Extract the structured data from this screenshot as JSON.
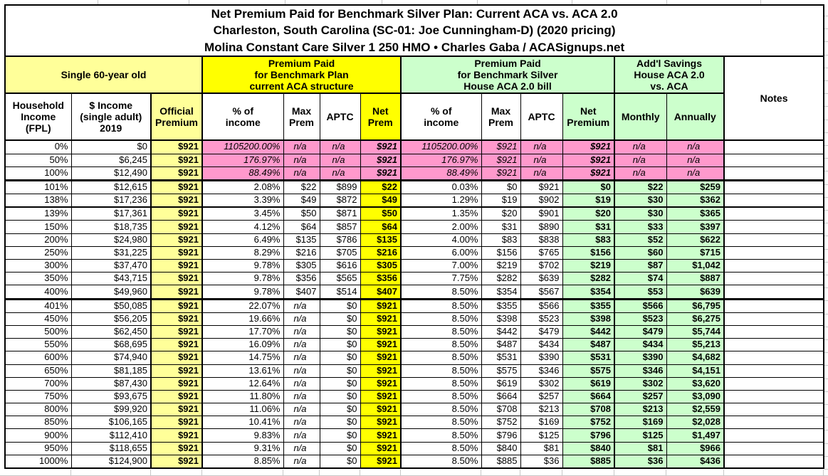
{
  "title": {
    "line1": "Net Premium Paid for Benchmark Silver Plan: Current ACA vs. ACA 2.0",
    "line2": "Charleston, South Carolina (SC-01: Joe Cunningham-D) (2020 pricing)",
    "line3": "Molina Constant Care Silver 1 250 HMO • Charles Gaba / ACASignups.net"
  },
  "colors": {
    "light_yellow": "#FFFF99",
    "bright_yellow": "#FFFF00",
    "light_green": "#CCFFCC",
    "pink": "#FF99CC"
  },
  "table": {
    "groups": {
      "demographic": "Single 60-year old",
      "current_aca": "Premium Paid\nfor Benchmark Plan\ncurrent ACA structure",
      "aca20": "Premium Paid\nfor Benchmark Silver\nHouse ACA 2.0 bill",
      "savings": "Add'l Savings\nHouse ACA 2.0\nvs. ACA",
      "notes": "Notes"
    },
    "columns": [
      "Household\nIncome\n(FPL)",
      "$ Income\n(single adult)\n2019",
      "Official\nPremium",
      "% of\nincome",
      "Max\nPrem",
      "APTC",
      "Net\nPrem",
      "% of\nincome",
      "Max\nPrem",
      "APTC",
      "Net\nPremium",
      "Monthly",
      "Annually"
    ],
    "rows": [
      {
        "cells": [
          "0%",
          "$0",
          "$921",
          "1105200.00%",
          "n/a",
          "n/a",
          "$921",
          "1105200.00%",
          "$921",
          "n/a",
          "$921",
          "n/a",
          "n/a",
          ""
        ],
        "pink": true
      },
      {
        "cells": [
          "50%",
          "$6,245",
          "$921",
          "176.97%",
          "n/a",
          "n/a",
          "$921",
          "176.97%",
          "$921",
          "n/a",
          "$921",
          "n/a",
          "n/a",
          ""
        ],
        "pink": true
      },
      {
        "cells": [
          "100%",
          "$12,490",
          "$921",
          "88.49%",
          "n/a",
          "n/a",
          "$921",
          "88.49%",
          "$921",
          "n/a",
          "$921",
          "n/a",
          "n/a",
          ""
        ],
        "pink": true,
        "divider": "thick3"
      },
      {
        "cells": [
          "101%",
          "$12,615",
          "$921",
          "2.08%",
          "$22",
          "$899",
          "$22",
          "0.03%",
          "$0",
          "$921",
          "$0",
          "$22",
          "$259",
          ""
        ]
      },
      {
        "cells": [
          "138%",
          "$17,236",
          "$921",
          "3.39%",
          "$49",
          "$872",
          "$49",
          "1.29%",
          "$19",
          "$902",
          "$19",
          "$30",
          "$362",
          ""
        ],
        "divider": "thick"
      },
      {
        "cells": [
          "139%",
          "$17,361",
          "$921",
          "3.45%",
          "$50",
          "$871",
          "$50",
          "1.35%",
          "$20",
          "$901",
          "$20",
          "$30",
          "$365",
          ""
        ]
      },
      {
        "cells": [
          "150%",
          "$18,735",
          "$921",
          "4.12%",
          "$64",
          "$857",
          "$64",
          "2.00%",
          "$31",
          "$890",
          "$31",
          "$33",
          "$397",
          ""
        ]
      },
      {
        "cells": [
          "200%",
          "$24,980",
          "$921",
          "6.49%",
          "$135",
          "$786",
          "$135",
          "4.00%",
          "$83",
          "$838",
          "$83",
          "$52",
          "$622",
          ""
        ]
      },
      {
        "cells": [
          "250%",
          "$31,225",
          "$921",
          "8.29%",
          "$216",
          "$705",
          "$216",
          "6.00%",
          "$156",
          "$765",
          "$156",
          "$60",
          "$715",
          ""
        ]
      },
      {
        "cells": [
          "300%",
          "$37,470",
          "$921",
          "9.78%",
          "$305",
          "$616",
          "$305",
          "7.00%",
          "$219",
          "$702",
          "$219",
          "$87",
          "$1,042",
          ""
        ]
      },
      {
        "cells": [
          "350%",
          "$43,715",
          "$921",
          "9.78%",
          "$356",
          "$565",
          "$356",
          "7.75%",
          "$282",
          "$639",
          "$282",
          "$74",
          "$887",
          ""
        ]
      },
      {
        "cells": [
          "400%",
          "$49,960",
          "$921",
          "9.78%",
          "$407",
          "$514",
          "$407",
          "8.50%",
          "$354",
          "$567",
          "$354",
          "$53",
          "$639",
          ""
        ],
        "divider": "thick3"
      },
      {
        "cells": [
          "401%",
          "$50,085",
          "$921",
          "22.07%",
          "n/a",
          "$0",
          "$921",
          "8.50%",
          "$355",
          "$566",
          "$355",
          "$566",
          "$6,795",
          ""
        ]
      },
      {
        "cells": [
          "450%",
          "$56,205",
          "$921",
          "19.66%",
          "n/a",
          "$0",
          "$921",
          "8.50%",
          "$398",
          "$523",
          "$398",
          "$523",
          "$6,275",
          ""
        ]
      },
      {
        "cells": [
          "500%",
          "$62,450",
          "$921",
          "17.70%",
          "n/a",
          "$0",
          "$921",
          "8.50%",
          "$442",
          "$479",
          "$442",
          "$479",
          "$5,744",
          ""
        ]
      },
      {
        "cells": [
          "550%",
          "$68,695",
          "$921",
          "16.09%",
          "n/a",
          "$0",
          "$921",
          "8.50%",
          "$487",
          "$434",
          "$487",
          "$434",
          "$5,213",
          ""
        ]
      },
      {
        "cells": [
          "600%",
          "$74,940",
          "$921",
          "14.75%",
          "n/a",
          "$0",
          "$921",
          "8.50%",
          "$531",
          "$390",
          "$531",
          "$390",
          "$4,682",
          ""
        ]
      },
      {
        "cells": [
          "650%",
          "$81,185",
          "$921",
          "13.61%",
          "n/a",
          "$0",
          "$921",
          "8.50%",
          "$575",
          "$346",
          "$575",
          "$346",
          "$4,151",
          ""
        ]
      },
      {
        "cells": [
          "700%",
          "$87,430",
          "$921",
          "12.64%",
          "n/a",
          "$0",
          "$921",
          "8.50%",
          "$619",
          "$302",
          "$619",
          "$302",
          "$3,620",
          ""
        ]
      },
      {
        "cells": [
          "750%",
          "$93,675",
          "$921",
          "11.80%",
          "n/a",
          "$0",
          "$921",
          "8.50%",
          "$664",
          "$257",
          "$664",
          "$257",
          "$3,090",
          ""
        ]
      },
      {
        "cells": [
          "800%",
          "$99,920",
          "$921",
          "11.06%",
          "n/a",
          "$0",
          "$921",
          "8.50%",
          "$708",
          "$213",
          "$708",
          "$213",
          "$2,559",
          ""
        ]
      },
      {
        "cells": [
          "850%",
          "$106,165",
          "$921",
          "10.41%",
          "n/a",
          "$0",
          "$921",
          "8.50%",
          "$752",
          "$169",
          "$752",
          "$169",
          "$2,028",
          ""
        ]
      },
      {
        "cells": [
          "900%",
          "$112,410",
          "$921",
          "9.83%",
          "n/a",
          "$0",
          "$921",
          "8.50%",
          "$796",
          "$125",
          "$796",
          "$125",
          "$1,497",
          ""
        ]
      },
      {
        "cells": [
          "950%",
          "$118,655",
          "$921",
          "9.31%",
          "n/a",
          "$0",
          "$921",
          "8.50%",
          "$840",
          "$81",
          "$840",
          "$81",
          "$966",
          ""
        ]
      },
      {
        "cells": [
          "1000%",
          "$124,900",
          "$921",
          "8.85%",
          "n/a",
          "$0",
          "$921",
          "8.50%",
          "$885",
          "$36",
          "$885",
          "$36",
          "$436",
          ""
        ]
      }
    ]
  }
}
